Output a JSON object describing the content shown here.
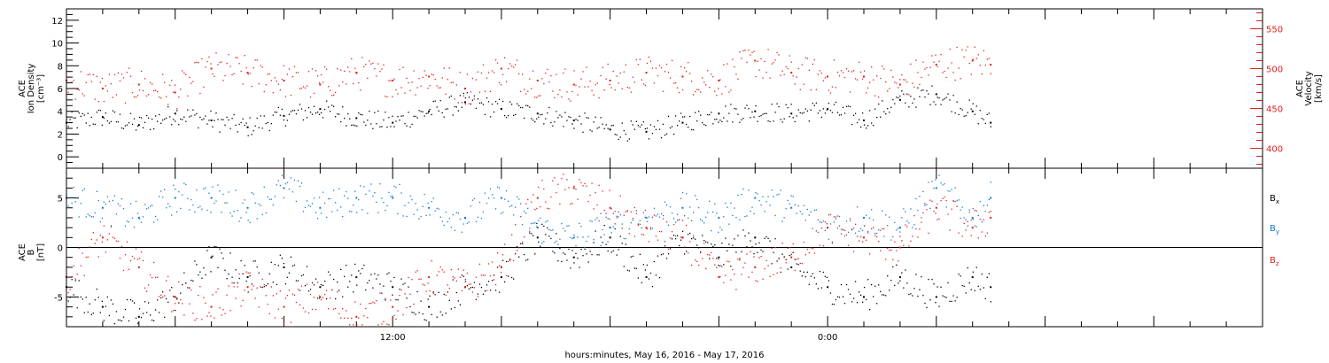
{
  "colors": {
    "axis": "#000000",
    "density": "#000000",
    "velocity": "#e0201b",
    "bx": "#000000",
    "by": "#1478d4",
    "bz": "#e0201b"
  },
  "xaxis": {
    "title": "hours:minutes, May 16, 2016 - May 17, 2016",
    "range_hours": [
      3.0,
      36.0
    ],
    "data_end_hour": 28.5,
    "tick_labels": [
      {
        "hour": 12,
        "label": "12:00"
      },
      {
        "hour": 24,
        "label": "0:00"
      }
    ]
  },
  "panels": {
    "top": {
      "left_label_lines": [
        "ACE",
        "Ion Density"
      ],
      "left_unit": "[cm⁻³]",
      "right_label_lines": [
        "ACE",
        "Velocity"
      ],
      "right_unit": "[km/s]"
    },
    "bottom": {
      "left_label_lines": [
        "ACE",
        "B"
      ],
      "left_unit": "[nT]",
      "legend": [
        {
          "base": "B",
          "sub": "x",
          "color_key": "bx"
        },
        {
          "base": "B",
          "sub": "y",
          "color_key": "by"
        },
        {
          "base": "B",
          "sub": "z",
          "color_key": "bz"
        }
      ]
    }
  },
  "chart_data": [
    {
      "type": "scatter",
      "panel": "top",
      "x_unit": "hours since 2016-05-16 00:00 UT",
      "ylabel": "ACE Ion Density [cm⁻³]",
      "ylim": [
        -1,
        13
      ],
      "yticks": [
        0,
        2,
        4,
        6,
        8,
        10,
        12
      ],
      "y2label": "ACE Velocity [km/s]",
      "y2lim": [
        375,
        575
      ],
      "y2ticks": [
        400,
        450,
        500,
        550
      ],
      "series": [
        {
          "name": "Ion Density",
          "axis": "left",
          "color_key": "density",
          "x": [
            3,
            4,
            5,
            6,
            7,
            8,
            9,
            10,
            11,
            12,
            13,
            14,
            15,
            16,
            17,
            18,
            19,
            20,
            21,
            22,
            23,
            24,
            25,
            26,
            27,
            28,
            28.5
          ],
          "y": [
            3.0,
            3.5,
            2.8,
            3.8,
            3.2,
            2.6,
            3.6,
            4.2,
            3.4,
            3.0,
            4.0,
            4.8,
            4.2,
            3.8,
            3.2,
            2.4,
            2.2,
            3.0,
            3.8,
            4.0,
            3.8,
            4.2,
            3.2,
            5.0,
            5.5,
            4.0,
            3.0
          ]
        },
        {
          "name": "Velocity",
          "axis": "right",
          "color_key": "velocity",
          "x": [
            3,
            4,
            5,
            6,
            7,
            8,
            9,
            10,
            11,
            12,
            13,
            14,
            15,
            16,
            17,
            18,
            19,
            20,
            21,
            22,
            23,
            24,
            25,
            26,
            27,
            28,
            28.5
          ],
          "y": [
            485,
            475,
            480,
            470,
            500,
            495,
            485,
            480,
            495,
            485,
            490,
            475,
            500,
            485,
            480,
            485,
            495,
            490,
            485,
            510,
            495,
            490,
            490,
            480,
            505,
            510,
            505
          ]
        }
      ]
    },
    {
      "type": "scatter",
      "panel": "bottom",
      "x_unit": "hours since 2016-05-16 00:00 UT",
      "ylabel": "ACE B [nT]",
      "ylim": [
        -8,
        8
      ],
      "yticks": [
        -5,
        0,
        5
      ],
      "series": [
        {
          "name": "Bx",
          "color_key": "bx",
          "x": [
            3,
            4,
            5,
            6,
            7,
            8,
            9,
            10,
            11,
            12,
            13,
            14,
            15,
            16,
            17,
            18,
            19,
            20,
            21,
            22,
            23,
            24,
            25,
            26,
            27,
            28,
            28.5
          ],
          "y": [
            -4,
            -6,
            -7,
            -5,
            -1,
            -3,
            -2,
            -4,
            -3,
            -4,
            -6,
            -4,
            -3,
            1,
            -1,
            1,
            -3,
            1,
            -1,
            1,
            -2,
            -4,
            -5,
            -3,
            -5,
            -3,
            -4
          ]
        },
        {
          "name": "By",
          "color_key": "by",
          "x": [
            3,
            4,
            5,
            6,
            7,
            8,
            9,
            10,
            11,
            12,
            13,
            14,
            15,
            16,
            17,
            18,
            19,
            20,
            21,
            22,
            23,
            24,
            25,
            26,
            27,
            28,
            28.5
          ],
          "y": [
            5,
            4,
            3,
            5,
            5,
            4,
            6,
            4,
            5,
            5,
            4,
            3,
            5,
            2,
            1,
            2,
            3,
            4,
            3,
            5,
            4,
            2,
            3,
            2,
            6,
            3,
            5
          ]
        },
        {
          "name": "Bz",
          "color_key": "bz",
          "x": [
            3,
            4,
            5,
            6,
            7,
            8,
            9,
            10,
            11,
            12,
            13,
            14,
            15,
            16,
            17,
            18,
            19,
            20,
            21,
            22,
            23,
            24,
            25,
            26,
            27,
            28,
            28.5
          ],
          "y": [
            -3,
            1,
            -2,
            -5,
            -6,
            -4,
            -6,
            -5,
            -7,
            -6,
            -3,
            -4,
            -2,
            5,
            6,
            4,
            2,
            1,
            -3,
            -2,
            -1,
            2,
            1,
            0,
            4,
            2,
            3
          ]
        }
      ]
    }
  ]
}
